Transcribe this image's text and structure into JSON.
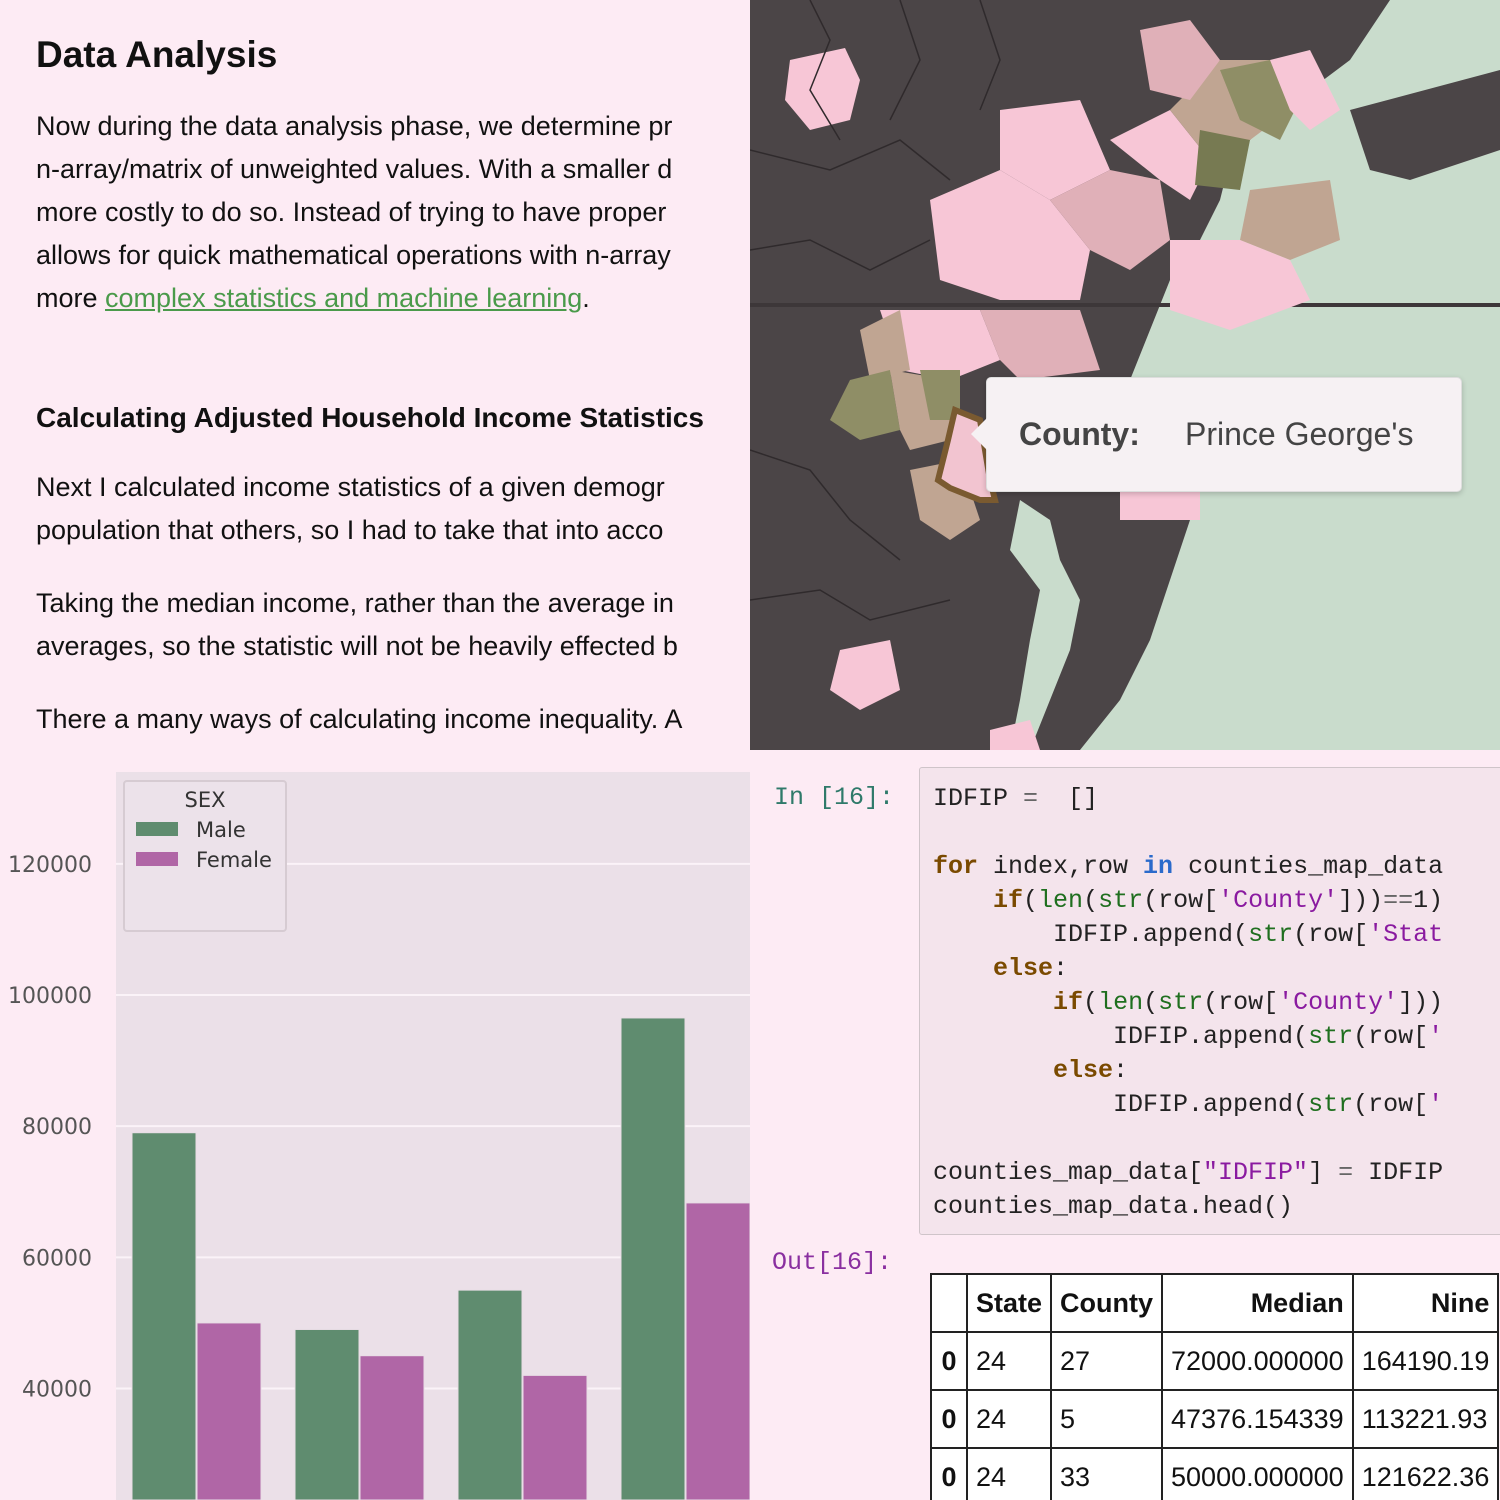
{
  "article": {
    "title": "Data Analysis",
    "para1_lines": [
      "Now during the data analysis phase, we determine pr",
      "n-array/matrix of unweighted values. With a smaller d",
      "more costly to do so. Instead of trying to have proper",
      "allows for quick mathematical operations with n-array"
    ],
    "para1_last_prefix": "more ",
    "para1_link": "complex statistics and machine learning",
    "para1_last_suffix": ".",
    "section_title": "Calculating Adjusted Household Income Statistics",
    "para2_lines": [
      "Next I calculated income statistics of a given demogr",
      "population that others, so I had to take that into acco"
    ],
    "para3_lines": [
      "Taking the median income, rather than the average in",
      "averages, so the statistic will not be heavily effected b"
    ],
    "para4_lines": [
      "There a many ways of calculating income inequality. A"
    ]
  },
  "map": {
    "tooltip_key": "County:",
    "tooltip_value": "Prince George's",
    "colors": {
      "land_dark": "#4b4547",
      "water": "#c9dccc",
      "pink_light": "#f7c6d6",
      "pink_mid": "#e0b0b8",
      "tan": "#c0a592",
      "olive": "#8f8e66",
      "olive_dark": "#777a52",
      "highlight": "#7a5a30"
    }
  },
  "chart_data": {
    "type": "bar",
    "categories": [
      "",
      "",
      "",
      ""
    ],
    "series": [
      {
        "name": "Male",
        "values": [
          79000,
          49000,
          55000,
          96500
        ]
      },
      {
        "name": "Female",
        "values": [
          50000,
          45000,
          42000,
          68300
        ]
      }
    ],
    "legend_title": "SEX",
    "legend_position": "top-left",
    "y_ticks": [
      "40000",
      "60000",
      "80000",
      "100000",
      "120000"
    ],
    "y_tick_values": [
      40000,
      60000,
      80000,
      100000,
      120000
    ],
    "ylim": [
      23000,
      134000
    ],
    "grid": true,
    "colors": {
      "Male": "#5f8c6f",
      "Female": "#b066a6",
      "plot_bg": "#ebe0e8",
      "grid": "#fbf3f8"
    }
  },
  "notebook": {
    "in_prompt": "In [16]:",
    "out_prompt": "Out[16]:",
    "table": {
      "columns": [
        "",
        "State",
        "County",
        "Median",
        "Nine"
      ],
      "rows": [
        [
          "0",
          "24",
          "27",
          "72000.000000",
          "164190.19"
        ],
        [
          "0",
          "24",
          "5",
          "47376.154339",
          "113221.93"
        ],
        [
          "0",
          "24",
          "33",
          "50000.000000",
          "121622.36"
        ]
      ]
    }
  }
}
